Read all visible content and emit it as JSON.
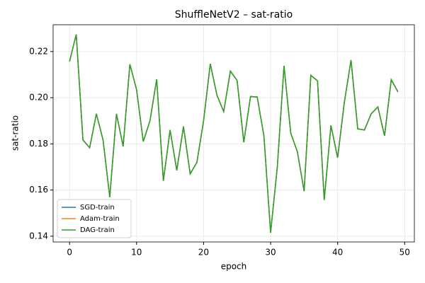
{
  "chart_data": {
    "type": "line",
    "title": "ShuffleNetV2 – sat-ratio",
    "x_label": "epoch",
    "y_label": "sat-ratio",
    "x": [
      0,
      1,
      2,
      3,
      4,
      5,
      6,
      7,
      8,
      9,
      10,
      11,
      12,
      13,
      14,
      15,
      16,
      17,
      18,
      19,
      20,
      21,
      22,
      23,
      24,
      25,
      26,
      27,
      28,
      29,
      30,
      31,
      32,
      33,
      34,
      35,
      36,
      37,
      38,
      39,
      40,
      41,
      42,
      43,
      44,
      45,
      46,
      47,
      48,
      49
    ],
    "series": [
      {
        "name": "SGD-train",
        "color": "#1f77b4",
        "values": [
          0.2157,
          0.2274,
          0.1817,
          0.1783,
          0.193,
          0.1817,
          0.1569,
          0.193,
          0.1789,
          0.2145,
          0.2035,
          0.181,
          0.19,
          0.208,
          0.164,
          0.186,
          0.1685,
          0.1875,
          0.167,
          0.172,
          0.19,
          0.2147,
          0.201,
          0.194,
          0.2115,
          0.2075,
          0.1807,
          0.2005,
          0.2003,
          0.1835,
          0.1415,
          0.17,
          0.2138,
          0.1847,
          0.1765,
          0.1595,
          0.2097,
          0.2073,
          0.1557,
          0.188,
          0.174,
          0.198,
          0.2163,
          0.1865,
          0.186,
          0.193,
          0.196,
          0.1835,
          0.2078,
          0.2025
        ]
      },
      {
        "name": "Adam-train",
        "color": "#ff7f0e",
        "values": [
          0.2157,
          0.2274,
          0.1817,
          0.1783,
          0.193,
          0.1817,
          0.1569,
          0.193,
          0.1789,
          0.2145,
          0.2035,
          0.181,
          0.19,
          0.208,
          0.164,
          0.186,
          0.1685,
          0.1875,
          0.167,
          0.172,
          0.19,
          0.2147,
          0.201,
          0.194,
          0.2115,
          0.2075,
          0.1807,
          0.2005,
          0.2003,
          0.1835,
          0.1415,
          0.17,
          0.2138,
          0.1847,
          0.1765,
          0.1595,
          0.2097,
          0.2073,
          0.1557,
          0.188,
          0.174,
          0.198,
          0.2163,
          0.1865,
          0.186,
          0.193,
          0.196,
          0.1835,
          0.2078,
          0.2025
        ]
      },
      {
        "name": "DAG-train",
        "color": "#2ca02c",
        "values": [
          0.2157,
          0.2274,
          0.1817,
          0.1783,
          0.193,
          0.1817,
          0.1569,
          0.193,
          0.1789,
          0.2145,
          0.2035,
          0.181,
          0.19,
          0.208,
          0.164,
          0.186,
          0.1685,
          0.1875,
          0.167,
          0.172,
          0.19,
          0.2147,
          0.201,
          0.194,
          0.2115,
          0.2075,
          0.1807,
          0.2005,
          0.2003,
          0.1835,
          0.1415,
          0.17,
          0.2138,
          0.1847,
          0.1765,
          0.1595,
          0.2097,
          0.2073,
          0.1557,
          0.188,
          0.174,
          0.198,
          0.2163,
          0.1865,
          0.186,
          0.193,
          0.196,
          0.1835,
          0.2078,
          0.2025
        ]
      }
    ],
    "xlim": [
      -2.45,
      51.45
    ],
    "ylim": [
      0.1375,
      0.2316
    ],
    "xticks": [
      0,
      10,
      20,
      30,
      40,
      50
    ],
    "yticks": [
      0.14,
      0.16,
      0.18,
      {
        "value": 0.2,
        "label": "0.20"
      },
      0.22
    ],
    "grid": true,
    "legend": "lower left"
  }
}
